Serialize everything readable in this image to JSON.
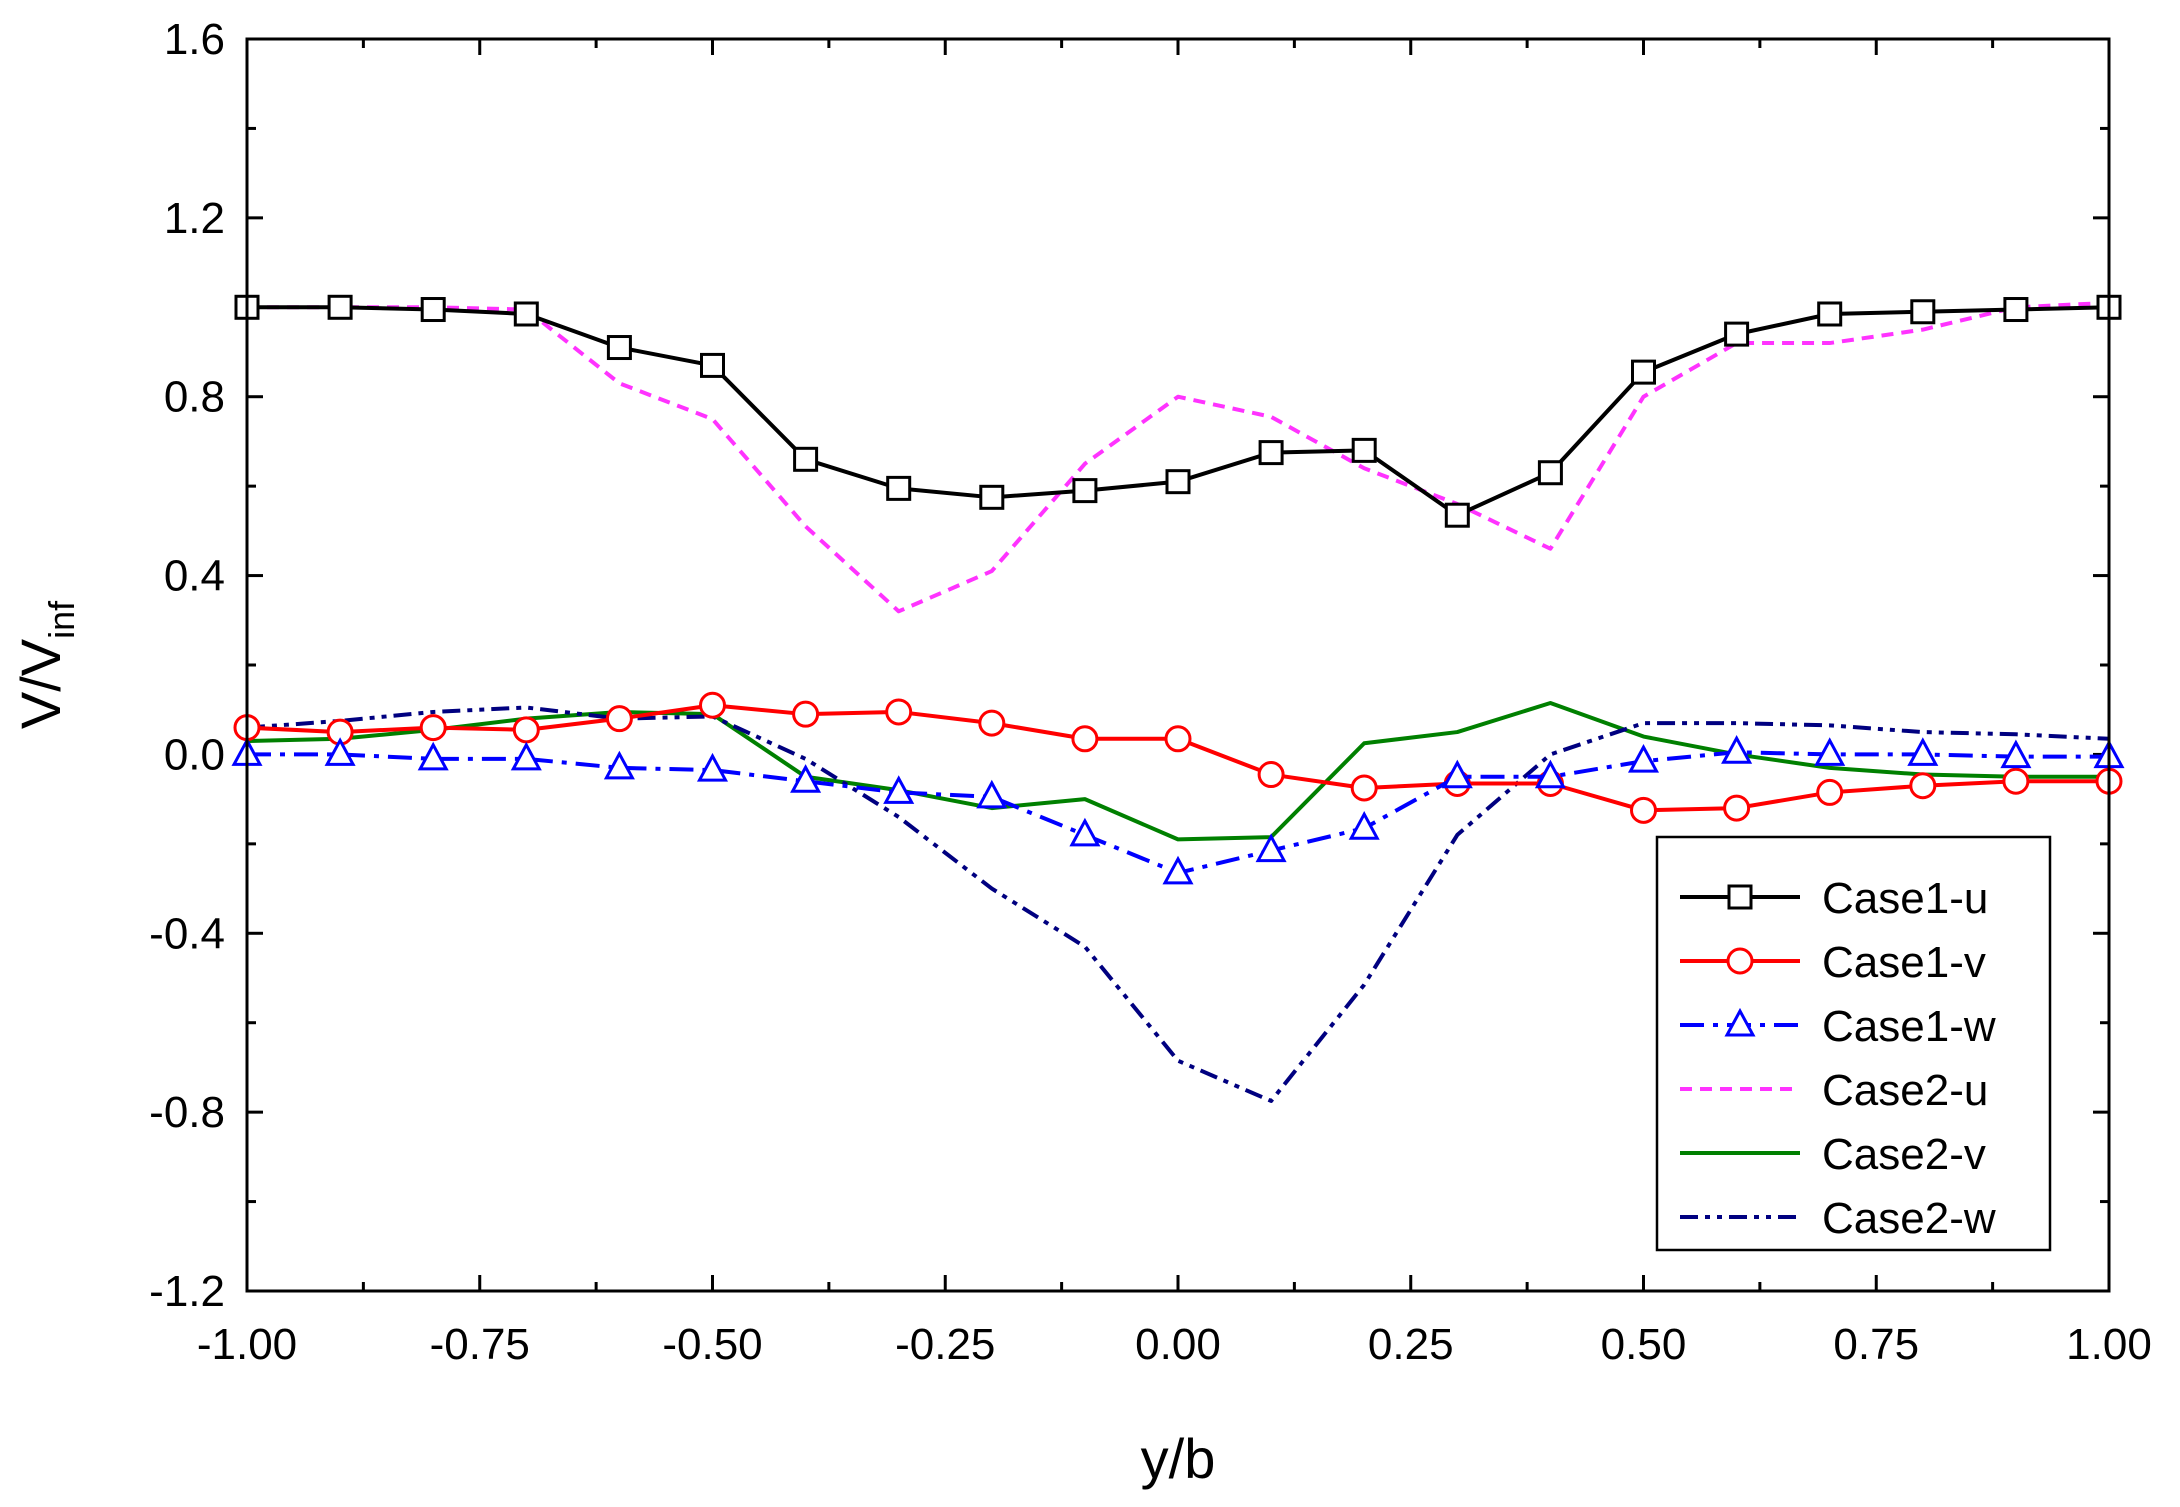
{
  "chart_data": {
    "type": "line",
    "xlabel": "y/b",
    "ylabel": "V/V",
    "ylabel_sub": "inf",
    "xlim": [
      -1.0,
      1.0
    ],
    "ylim": [
      -1.2,
      1.6
    ],
    "xticks": [
      "-1.00",
      "-0.75",
      "-0.50",
      "-0.25",
      "0.00",
      "0.25",
      "0.50",
      "0.75",
      "1.00"
    ],
    "xtick_values": [
      -1.0,
      -0.75,
      -0.5,
      -0.25,
      0.0,
      0.25,
      0.5,
      0.75,
      1.0
    ],
    "yticks": [
      "-1.2",
      "-0.8",
      "-0.4",
      "0.0",
      "0.4",
      "0.8",
      "1.2",
      "1.6"
    ],
    "ytick_values": [
      -1.2,
      -0.8,
      -0.4,
      0.0,
      0.4,
      0.8,
      1.2,
      1.6
    ],
    "grid": false,
    "legend_position": "bottom-right",
    "x": [
      -1.0,
      -0.9,
      -0.8,
      -0.7,
      -0.6,
      -0.5,
      -0.4,
      -0.3,
      -0.2,
      -0.1,
      0.0,
      0.1,
      0.2,
      0.3,
      0.4,
      0.5,
      0.6,
      0.7,
      0.8,
      0.9,
      1.0
    ],
    "series": [
      {
        "name": "Case1-u",
        "color": "#000000",
        "dash": "solid",
        "marker": "square",
        "values": [
          1.0,
          1.0,
          0.995,
          0.985,
          0.91,
          0.87,
          0.66,
          0.595,
          0.575,
          0.59,
          0.61,
          0.675,
          0.68,
          0.535,
          0.63,
          0.855,
          0.94,
          0.985,
          0.99,
          0.995,
          1.0
        ]
      },
      {
        "name": "Case1-v",
        "color": "#ff0000",
        "dash": "solid",
        "marker": "circle",
        "values": [
          0.06,
          0.05,
          0.06,
          0.055,
          0.08,
          0.11,
          0.09,
          0.095,
          0.07,
          0.035,
          0.035,
          -0.045,
          -0.075,
          -0.065,
          -0.065,
          -0.125,
          -0.12,
          -0.085,
          -0.07,
          -0.06,
          -0.06
        ]
      },
      {
        "name": "Case1-w",
        "color": "#0000ff",
        "dash": "dashdot",
        "marker": "triangle",
        "values": [
          0.0,
          0.0,
          -0.01,
          -0.01,
          -0.03,
          -0.035,
          -0.06,
          -0.085,
          -0.095,
          -0.18,
          -0.265,
          -0.215,
          -0.165,
          -0.05,
          -0.05,
          -0.015,
          0.005,
          0.0,
          0.0,
          -0.005,
          -0.005
        ]
      },
      {
        "name": "Case2-u",
        "color": "#ff33ff",
        "dash": "short-dash",
        "marker": "none",
        "values": [
          1.0,
          1.0,
          1.0,
          0.995,
          0.83,
          0.75,
          0.51,
          0.32,
          0.41,
          0.65,
          0.8,
          0.755,
          0.64,
          0.56,
          0.46,
          0.8,
          0.92,
          0.92,
          0.95,
          1.0,
          1.01
        ]
      },
      {
        "name": "Case2-v",
        "color": "#008000",
        "dash": "solid",
        "marker": "none",
        "values": [
          0.03,
          0.035,
          0.055,
          0.08,
          0.095,
          0.09,
          -0.05,
          -0.08,
          -0.12,
          -0.1,
          -0.19,
          -0.185,
          0.025,
          0.05,
          0.115,
          0.04,
          0.0,
          -0.03,
          -0.045,
          -0.05,
          -0.05
        ]
      },
      {
        "name": "Case2-w",
        "color": "#000080",
        "dash": "dashdotdot",
        "marker": "none",
        "values": [
          0.06,
          0.075,
          0.095,
          0.105,
          0.08,
          0.085,
          -0.01,
          -0.14,
          -0.3,
          -0.43,
          -0.685,
          -0.775,
          -0.515,
          -0.18,
          0.0,
          0.07,
          0.07,
          0.065,
          0.05,
          0.045,
          0.035
        ]
      }
    ]
  }
}
